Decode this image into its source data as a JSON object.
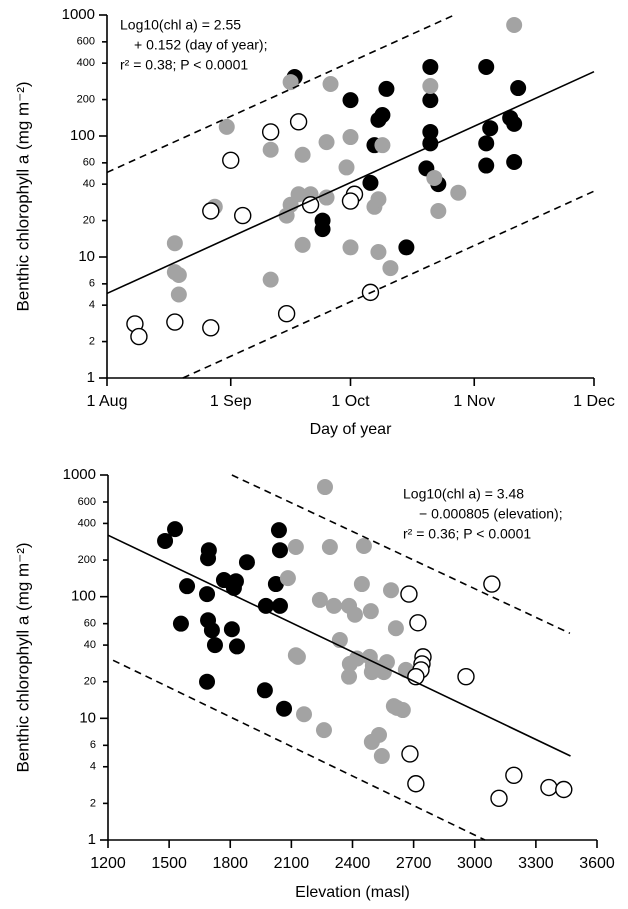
{
  "chart_data": [
    {
      "type": "scatter",
      "x_label": "Day of year",
      "y_label": "Benthic chlorophyll a (mg m⁻²)",
      "annotation": [
        "Log10(chl a) = 2.55",
        "+ 0.152 (day of year);",
        "r² = 0.38; P < 0.0001"
      ],
      "xlim": [
        213,
        335
      ],
      "xticks": [
        {
          "value": 213,
          "label": "1 Aug"
        },
        {
          "value": 244,
          "label": "1 Sep"
        },
        {
          "value": 274,
          "label": "1 Oct"
        },
        {
          "value": 305,
          "label": "1 Nov"
        },
        {
          "value": 335,
          "label": "1 Dec"
        }
      ],
      "ylim": [
        1,
        1000
      ],
      "yticks": [
        1,
        2,
        4,
        6,
        10,
        20,
        40,
        60,
        100,
        200,
        400,
        600,
        1000
      ],
      "ylog": true,
      "series": [
        {
          "color": "#000000",
          "filled": true,
          "x": [
            260,
            274,
            283,
            281,
            282,
            280,
            267,
            267,
            279,
            288,
            294,
            294,
            308,
            294,
            294,
            293,
            296,
            309,
            308,
            308,
            316,
            314,
            315,
            315
          ],
          "values": [
            307,
            198,
            245,
            136,
            149,
            84,
            20,
            17,
            41,
            12,
            372,
            198,
            372,
            108,
            87,
            54,
            40,
            116,
            87,
            57,
            249,
            141,
            126,
            61
          ]
        },
        {
          "color": "#a3a3a3",
          "filled": true,
          "x": [
            315,
            243,
            259,
            269,
            254,
            262,
            268,
            274,
            273,
            261,
            264,
            259,
            258,
            268,
            240,
            230,
            230,
            231,
            231,
            254,
            262,
            274,
            281,
            284,
            280,
            281,
            282,
            294,
            295,
            296,
            301
          ],
          "values": [
            827,
            119,
            279,
            269,
            77,
            70,
            89,
            98,
            55,
            33,
            33,
            27,
            22,
            31,
            26,
            13,
            7.5,
            7.1,
            4.9,
            6.5,
            12.6,
            12,
            11,
            8.1,
            26,
            30,
            84,
            259,
            45,
            24,
            34
          ]
        },
        {
          "color": "#000000",
          "filled": false,
          "x": [
            220,
            221,
            230,
            239,
            239,
            247,
            244,
            254,
            261,
            264,
            258,
            275,
            274,
            279
          ],
          "values": [
            2.8,
            2.2,
            2.9,
            2.6,
            24,
            22,
            63,
            108,
            131,
            27,
            3.4,
            33,
            29,
            5.1
          ]
        }
      ],
      "fit_lines": [
        {
          "x": [
            213,
            335
          ],
          "y": [
            5,
            340
          ],
          "dashed": false
        },
        {
          "x": [
            213,
            300
          ],
          "y": [
            50,
            1000
          ],
          "dashed": true
        },
        {
          "x": [
            232,
            335
          ],
          "y": [
            1,
            35
          ],
          "dashed": true
        }
      ]
    },
    {
      "type": "scatter",
      "x_label": "Elevation (masl)",
      "y_label": "Benthic chlorophyll a (mg m⁻²)",
      "annotation": [
        "Log10(chl a) = 3.48",
        "− 0.000805 (elevation);",
        "r² = 0.36; P < 0.0001"
      ],
      "xlim": [
        1200,
        3600
      ],
      "xticks": [
        1200,
        1500,
        1800,
        2100,
        2400,
        2700,
        3000,
        3300,
        3600
      ],
      "ylim": [
        1,
        1000
      ],
      "yticks": [
        1,
        2,
        4,
        6,
        10,
        20,
        40,
        60,
        100,
        200,
        400,
        600,
        1000
      ],
      "ylog": true,
      "series": [
        {
          "color": "#000000",
          "filled": true,
          "x": [
            1480,
            1529,
            1588,
            1558,
            1691,
            1695,
            1686,
            1691,
            1710,
            1725,
            1686,
            1769,
            1818,
            1828,
            1882,
            1808,
            1833,
            2024,
            2039,
            2044,
            1975,
            2044,
            1970,
            2064
          ],
          "values": [
            287,
            359,
            122,
            60,
            207,
            241,
            105,
            64,
            53,
            40,
            20,
            137,
            118,
            134,
            192,
            54,
            39,
            127,
            352,
            241,
            84,
            84,
            17,
            12
          ]
        },
        {
          "color": "#a3a3a3",
          "filled": true,
          "x": [
            2265,
            2122,
            2289,
            2456,
            2083,
            2240,
            2309,
            2383,
            2446,
            2412,
            2490,
            2338,
            2589,
            2613,
            2122,
            2132,
            2387,
            2422,
            2485,
            2500,
            2569,
            2662,
            2383,
            2495,
            2554,
            2603,
            2618,
            2647,
            2162,
            2260,
            2530,
            2495,
            2544
          ],
          "values": [
            796,
            256,
            256,
            261,
            142,
            94,
            84,
            84,
            127,
            71,
            76,
            44,
            113,
            55,
            33,
            32,
            28,
            31,
            32,
            27,
            29,
            25,
            22,
            24,
            24,
            12.6,
            12.2,
            11.7,
            10.8,
            8,
            7.3,
            6.4,
            4.9
          ]
        },
        {
          "color": "#000000",
          "filled": false,
          "x": [
            3084,
            2677,
            2721,
            2746,
            2741,
            2736,
            2711,
            2957,
            2682,
            2711,
            3192,
            3119,
            3364,
            3437
          ],
          "values": [
            127,
            105,
            61,
            32,
            28,
            25,
            22,
            22,
            5.1,
            2.9,
            3.4,
            2.2,
            2.7,
            2.6
          ]
        }
      ],
      "fit_lines": [
        {
          "x": [
            1200,
            3470
          ],
          "y": [
            320,
            4.9
          ],
          "dashed": false
        },
        {
          "x": [
            1808,
            3467
          ],
          "y": [
            1000,
            50
          ],
          "dashed": true
        },
        {
          "x": [
            1225,
            3050
          ],
          "y": [
            30,
            1
          ],
          "dashed": true
        }
      ]
    }
  ]
}
